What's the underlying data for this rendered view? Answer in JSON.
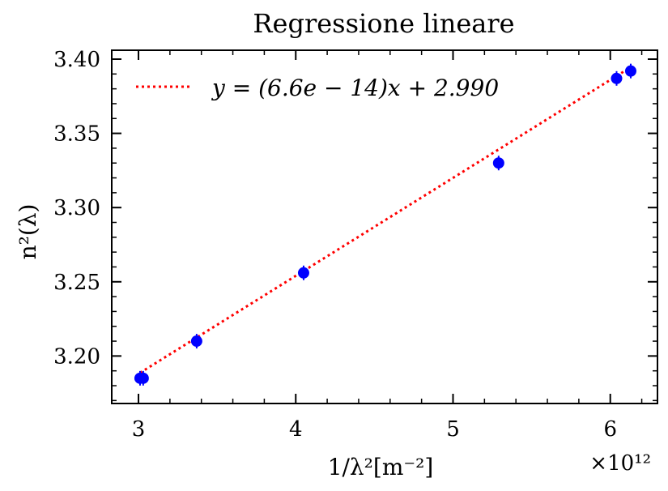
{
  "chart_data": {
    "type": "scatter",
    "title": "Regressione lineare",
    "xlabel": "1/λ²[m⁻²]",
    "ylabel": "n²(λ)",
    "x_multiplier_label": "×10¹²",
    "x_unit_scale": 1000000000000.0,
    "xlim": [
      2.83,
      6.3
    ],
    "ylim": [
      3.168,
      3.406
    ],
    "x_ticks": [
      3,
      4,
      5,
      6
    ],
    "x_tick_labels": [
      "3",
      "4",
      "5",
      "6"
    ],
    "y_ticks": [
      3.2,
      3.25,
      3.3,
      3.35,
      3.4
    ],
    "y_tick_labels": [
      "3.20",
      "3.25",
      "3.30",
      "3.35",
      "3.40"
    ],
    "grid": false,
    "legend_position": "top-left",
    "series": [
      {
        "kind": "points",
        "color": "#0000ff",
        "x": [
          3.01,
          3.03,
          3.37,
          4.05,
          5.29,
          6.04,
          6.13
        ],
        "y": [
          3.185,
          3.185,
          3.21,
          3.256,
          3.33,
          3.387,
          3.392
        ]
      },
      {
        "kind": "fit-line",
        "name": "y = (6.6e − 14)x + 2.990",
        "color": "#ff0000",
        "style": "dotted",
        "slope_per_1e12": 0.066,
        "intercept": 2.99,
        "x_range": [
          3.01,
          6.13
        ]
      }
    ]
  }
}
